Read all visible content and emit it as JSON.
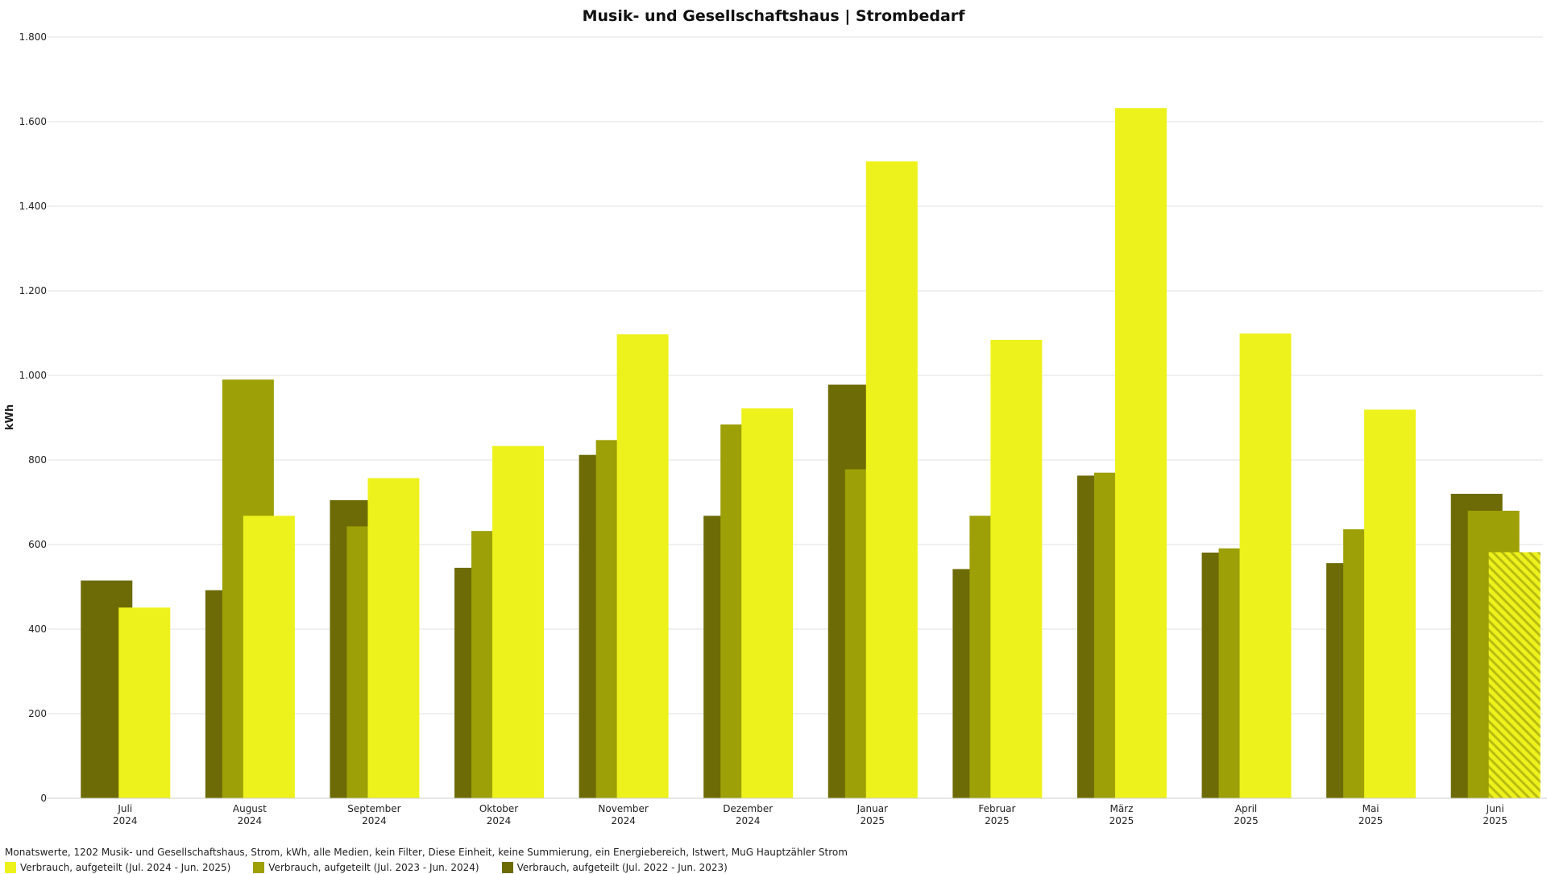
{
  "chart_data": {
    "type": "bar",
    "title": "Musik- und Gesellschaftshaus | Strombedarf",
    "ylabel": "kWh",
    "xlabel": "",
    "ylim": [
      0,
      1800
    ],
    "yticks": [
      0,
      200,
      400,
      600,
      800,
      1000,
      1200,
      1400,
      1600,
      1800
    ],
    "ytick_labels": [
      "0",
      "200",
      "400",
      "600",
      "800",
      "1.000",
      "1.200",
      "1.400",
      "1.600",
      "1.800"
    ],
    "grid": true,
    "legend_position": "bottom-left",
    "categories": [
      {
        "month": "Juli",
        "year": "2024"
      },
      {
        "month": "August",
        "year": "2024"
      },
      {
        "month": "September",
        "year": "2024"
      },
      {
        "month": "Oktober",
        "year": "2024"
      },
      {
        "month": "November",
        "year": "2024"
      },
      {
        "month": "Dezember",
        "year": "2024"
      },
      {
        "month": "Januar",
        "year": "2025"
      },
      {
        "month": "Februar",
        "year": "2025"
      },
      {
        "month": "März",
        "year": "2025"
      },
      {
        "month": "April",
        "year": "2025"
      },
      {
        "month": "Mai",
        "year": "2025"
      },
      {
        "month": "Juni",
        "year": "2025"
      }
    ],
    "series": [
      {
        "name": "Verbrauch, aufgeteilt (Jul. 2022 - Jun. 2023)",
        "color": "#6d6b05",
        "values": [
          515,
          492,
          705,
          545,
          812,
          668,
          978,
          542,
          763,
          581,
          556,
          720
        ]
      },
      {
        "name": "Verbrauch, aufgeteilt (Jul. 2023 - Jun. 2024)",
        "color": "#9da006",
        "values": [
          null,
          990,
          643,
          632,
          847,
          884,
          778,
          668,
          770,
          591,
          636,
          680
        ]
      },
      {
        "name": "Verbrauch, aufgeteilt (Jul. 2024 - Jun. 2025)",
        "color": "#eef21c",
        "values": [
          451,
          668,
          757,
          833,
          1097,
          922,
          1506,
          1084,
          1632,
          1099,
          919,
          582
        ]
      }
    ],
    "projected": {
      "series": 2,
      "category": 11
    },
    "footer": "Monatswerte, 1202 Musik- und Gesellschaftshaus, Strom, kWh, alle Medien, kein Filter, Diese Einheit, keine Summierung, ein Energiebereich, Istwert, MuG Hauptzähler Strom"
  }
}
